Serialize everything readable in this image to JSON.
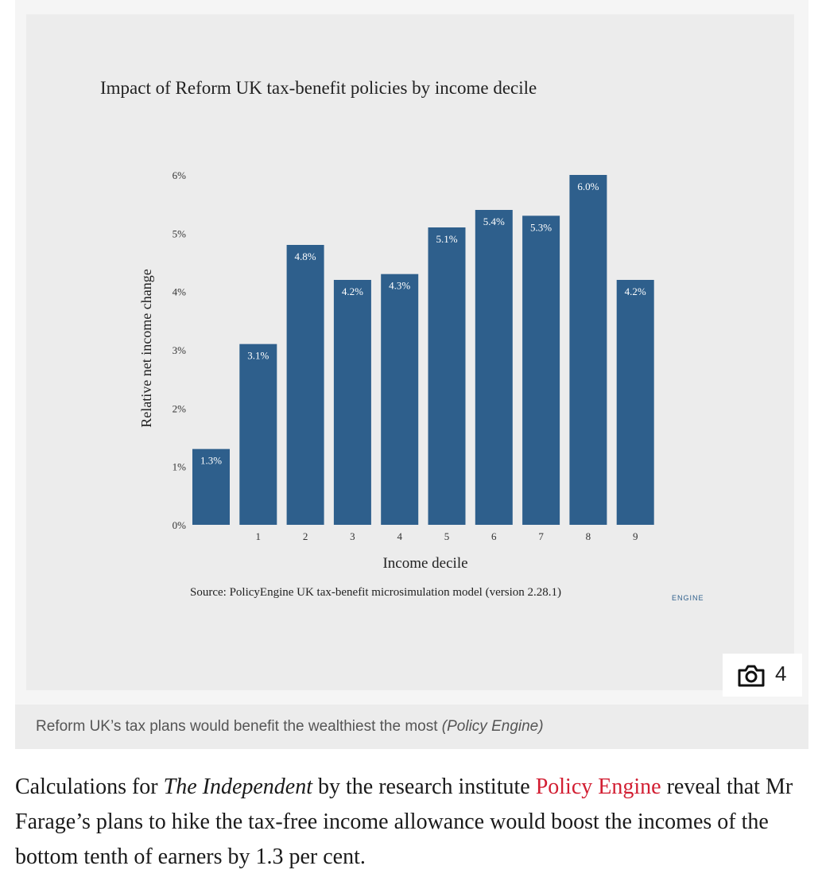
{
  "chart_data": {
    "type": "bar",
    "title": "Impact of Reform UK tax-benefit policies by income decile",
    "xlabel": "Income decile",
    "ylabel": "Relative net income change",
    "categories": [
      "",
      "1",
      "2",
      "3",
      "4",
      "5",
      "6",
      "7",
      "8",
      "9"
    ],
    "values": [
      1.3,
      3.1,
      4.8,
      4.2,
      4.3,
      5.1,
      5.4,
      5.3,
      6.0,
      4.2
    ],
    "data_labels": [
      "1.3%",
      "3.1%",
      "4.8%",
      "4.2%",
      "4.3%",
      "5.1%",
      "5.4%",
      "5.3%",
      "6.0%",
      "4.2%"
    ],
    "y_ticks": [
      "0%",
      "1%",
      "2%",
      "3%",
      "4%",
      "5%",
      "6%"
    ],
    "ylim": [
      0,
      6
    ],
    "grid": false,
    "bar_color": "#2e5f8c",
    "source": "Source: PolicyEngine UK tax-benefit microsimulation model (version 2.28.1)",
    "logo_text": "ENGINE"
  },
  "gallery": {
    "count": "4",
    "icon": "camera-icon"
  },
  "caption": {
    "text": "Reform UK’s tax plans would benefit the wealthiest the most",
    "credit": "(Policy Engine)"
  },
  "article": {
    "p1_a": "Calculations for ",
    "p1_pub": "The Independent",
    "p1_b": " by the research institute ",
    "p1_link": "Policy Engine",
    "p1_c": " reveal that Mr Farage’s plans to hike the tax-free income allowance would boost the incomes of the bottom tenth of earners by 1.3 per cent.",
    "link_color": "#d21e32"
  }
}
